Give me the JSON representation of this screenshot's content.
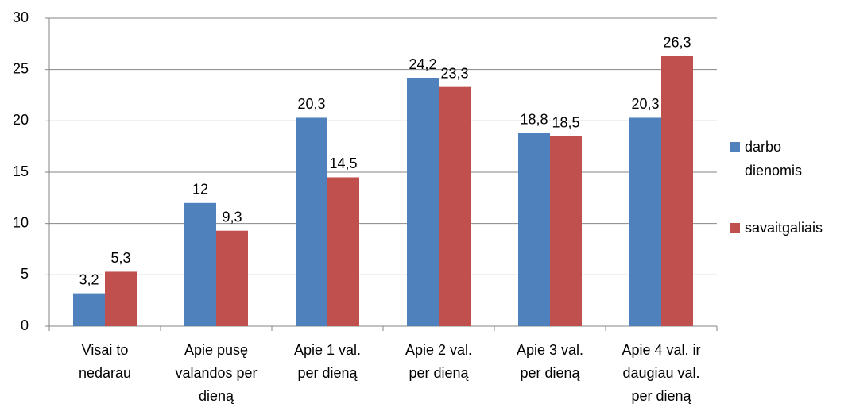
{
  "chart_data": {
    "type": "bar",
    "categories": [
      [
        "Visai to",
        "nedarau"
      ],
      [
        "Apie pusę",
        "valandos per",
        "dieną"
      ],
      [
        "Apie 1 val.",
        "per dieną"
      ],
      [
        "Apie 2 val.",
        "per dieną"
      ],
      [
        "Apie 3 val.",
        "per dieną"
      ],
      [
        "Apie 4 val. ir",
        "daugiau val.",
        "per dieną"
      ]
    ],
    "series": [
      {
        "name": "darbo dienomis",
        "color": "#4f81bd",
        "values": [
          3.2,
          12,
          20.3,
          24.2,
          18.8,
          20.3
        ],
        "value_labels": [
          "3,2",
          "12",
          "20,3",
          "24,2",
          "18,8",
          "20,3"
        ]
      },
      {
        "name": "savaitgaliais",
        "color": "#c0504d",
        "values": [
          5.3,
          9.3,
          14.5,
          23.3,
          18.5,
          26.3
        ],
        "value_labels": [
          "5,3",
          "9,3",
          "14,5",
          "23,3",
          "18,5",
          "26,3"
        ]
      }
    ],
    "ylim": [
      0,
      30
    ],
    "yticks": [
      0,
      5,
      10,
      15,
      20,
      25,
      30
    ],
    "grid": true,
    "legend": "right"
  }
}
